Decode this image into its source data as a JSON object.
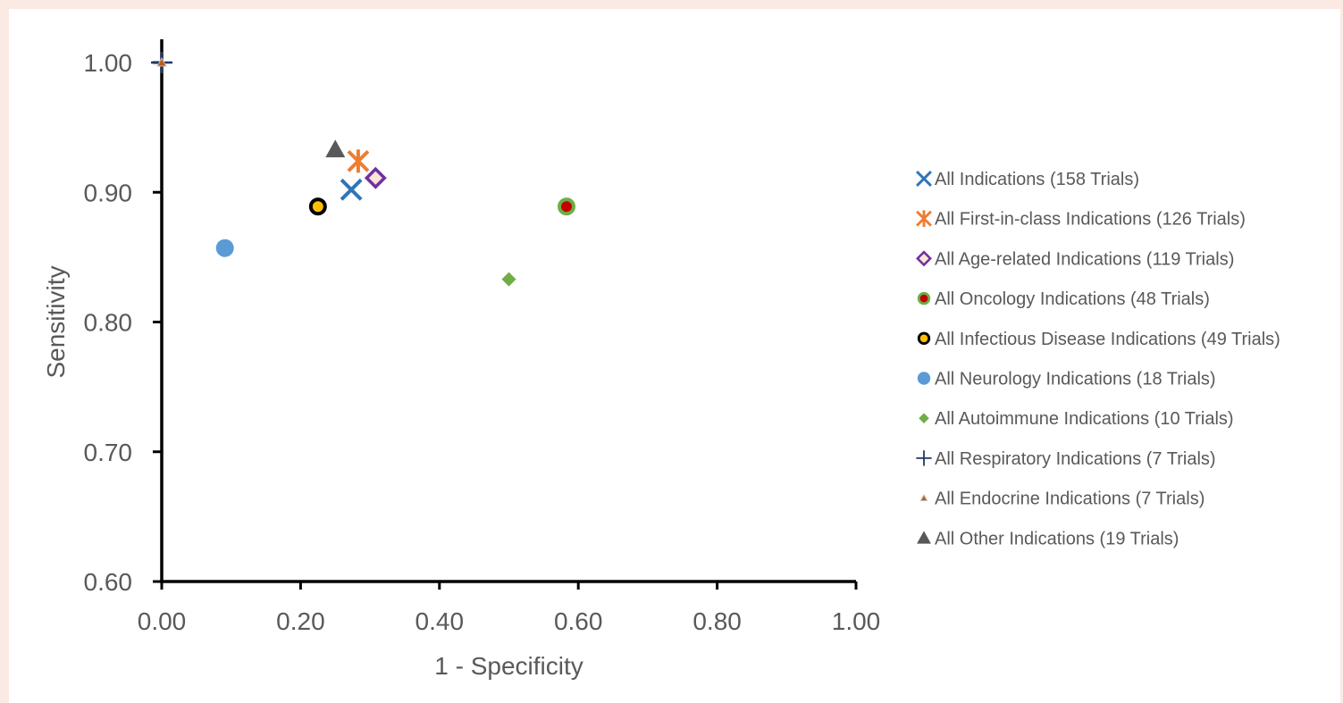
{
  "chart_data": {
    "type": "scatter",
    "title": "",
    "xlabel": "1 - Specificity",
    "ylabel": "Sensitivity",
    "xlim": [
      0,
      1
    ],
    "ylim": [
      0.6,
      1.0
    ],
    "x_ticks": [
      "0.00",
      "0.20",
      "0.40",
      "0.60",
      "0.80",
      "1.00"
    ],
    "y_ticks": [
      "0.60",
      "0.70",
      "0.80",
      "0.90",
      "1.00"
    ],
    "grid": false,
    "legend_position": "right",
    "series": [
      {
        "name": "All Indications (158 Trials)",
        "marker": "x",
        "color": "#2e75b6",
        "fill": "none",
        "x": 0.273,
        "y": 0.902
      },
      {
        "name": "All First-in-class Indications (126 Trials)",
        "marker": "asterisk",
        "color": "#ed7d31",
        "fill": "none",
        "x": 0.283,
        "y": 0.924
      },
      {
        "name": "All Age-related Indications (119 Trials)",
        "marker": "diamond-open",
        "color": "#7030a0",
        "fill": "#fbe5d6",
        "x": 0.308,
        "y": 0.911
      },
      {
        "name": "All Oncology Indications (48 Trials)",
        "marker": "circle-ring",
        "color": "#70ad47",
        "fill": "#c00000",
        "x": 0.583,
        "y": 0.889
      },
      {
        "name": "All Infectious Disease Indications (49 Trials)",
        "marker": "circle-ring",
        "color": "#000000",
        "fill": "#ffc000",
        "x": 0.225,
        "y": 0.889
      },
      {
        "name": "All Neurology Indications (18 Trials)",
        "marker": "circle",
        "color": "#5b9bd5",
        "fill": "#5b9bd5",
        "x": 0.091,
        "y": 0.857
      },
      {
        "name": "All Autoimmune Indications (10 Trials)",
        "marker": "diamond",
        "color": "#70ad47",
        "fill": "#70ad47",
        "x": 0.5,
        "y": 0.833
      },
      {
        "name": "All Respiratory Indications (7 Trials)",
        "marker": "plus",
        "color": "#203864",
        "fill": "none",
        "x": 0.0,
        "y": 1.0
      },
      {
        "name": "All Endocrine Indications (7 Trials)",
        "marker": "triangle-small",
        "color": "#c55a11",
        "fill": "#c55a11",
        "x": 0.0,
        "y": 1.0
      },
      {
        "name": "All Other Indications (19 Trials)",
        "marker": "triangle",
        "color": "#595959",
        "fill": "#595959",
        "x": 0.25,
        "y": 0.933
      }
    ]
  }
}
